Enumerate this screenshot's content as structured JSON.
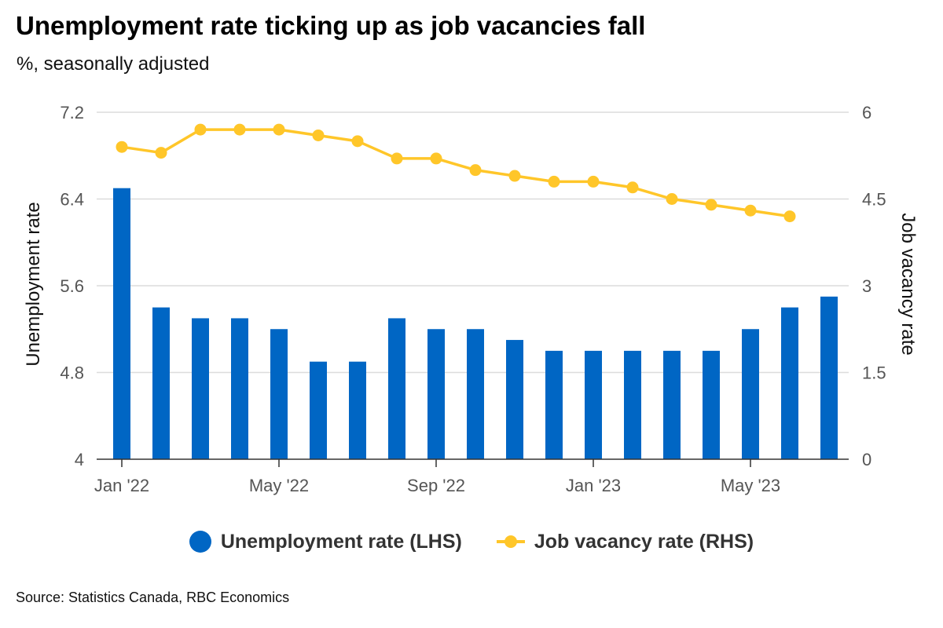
{
  "title": "Unemployment rate ticking up as job vacancies fall",
  "subtitle": "%, seasonally adjusted",
  "source": "Source: Statistics Canada, RBC Economics",
  "colors": {
    "bars": "#0066c4",
    "line": "#ffc629",
    "grid": "#dcdcdc",
    "axis": "#333333"
  },
  "chart_data": {
    "type": "bar",
    "title": "Unemployment rate ticking up as job vacancies fall",
    "subtitle": "%, seasonally adjusted",
    "x_tick_labels": [
      "Jan '22",
      "May '22",
      "Sep '22",
      "Jan '23",
      "May '23"
    ],
    "x": [
      "2022-01",
      "2022-02",
      "2022-03",
      "2022-04",
      "2022-05",
      "2022-06",
      "2022-07",
      "2022-08",
      "2022-09",
      "2022-10",
      "2022-11",
      "2022-12",
      "2023-01",
      "2023-02",
      "2023-03",
      "2023-04",
      "2023-05",
      "2023-06",
      "2023-07"
    ],
    "left_axis": {
      "label": "Unemployment rate",
      "ylim": [
        4,
        7.2
      ],
      "ticks": [
        "4",
        "4.8",
        "5.6",
        "6.4",
        "7.2"
      ]
    },
    "right_axis": {
      "label": "Job vacancy rate",
      "ylim": [
        0,
        6
      ],
      "ticks": [
        "0",
        "1.5",
        "3",
        "4.5",
        "6"
      ]
    },
    "grid": true,
    "legend_position": "bottom",
    "series": [
      {
        "name": "Unemployment rate (LHS)",
        "type": "bar",
        "axis": "left",
        "values": [
          6.5,
          5.4,
          5.3,
          5.3,
          5.2,
          4.9,
          4.9,
          5.3,
          5.2,
          5.2,
          5.1,
          5.0,
          5.0,
          5.0,
          5.0,
          5.0,
          5.2,
          5.4,
          5.5
        ]
      },
      {
        "name": "Job vacancy rate (RHS)",
        "type": "line",
        "axis": "right",
        "values": [
          5.4,
          5.3,
          5.7,
          5.7,
          5.7,
          5.6,
          5.5,
          5.2,
          5.2,
          5.0,
          4.9,
          4.8,
          4.8,
          4.7,
          4.5,
          4.4,
          4.3,
          4.2,
          null
        ]
      }
    ]
  }
}
